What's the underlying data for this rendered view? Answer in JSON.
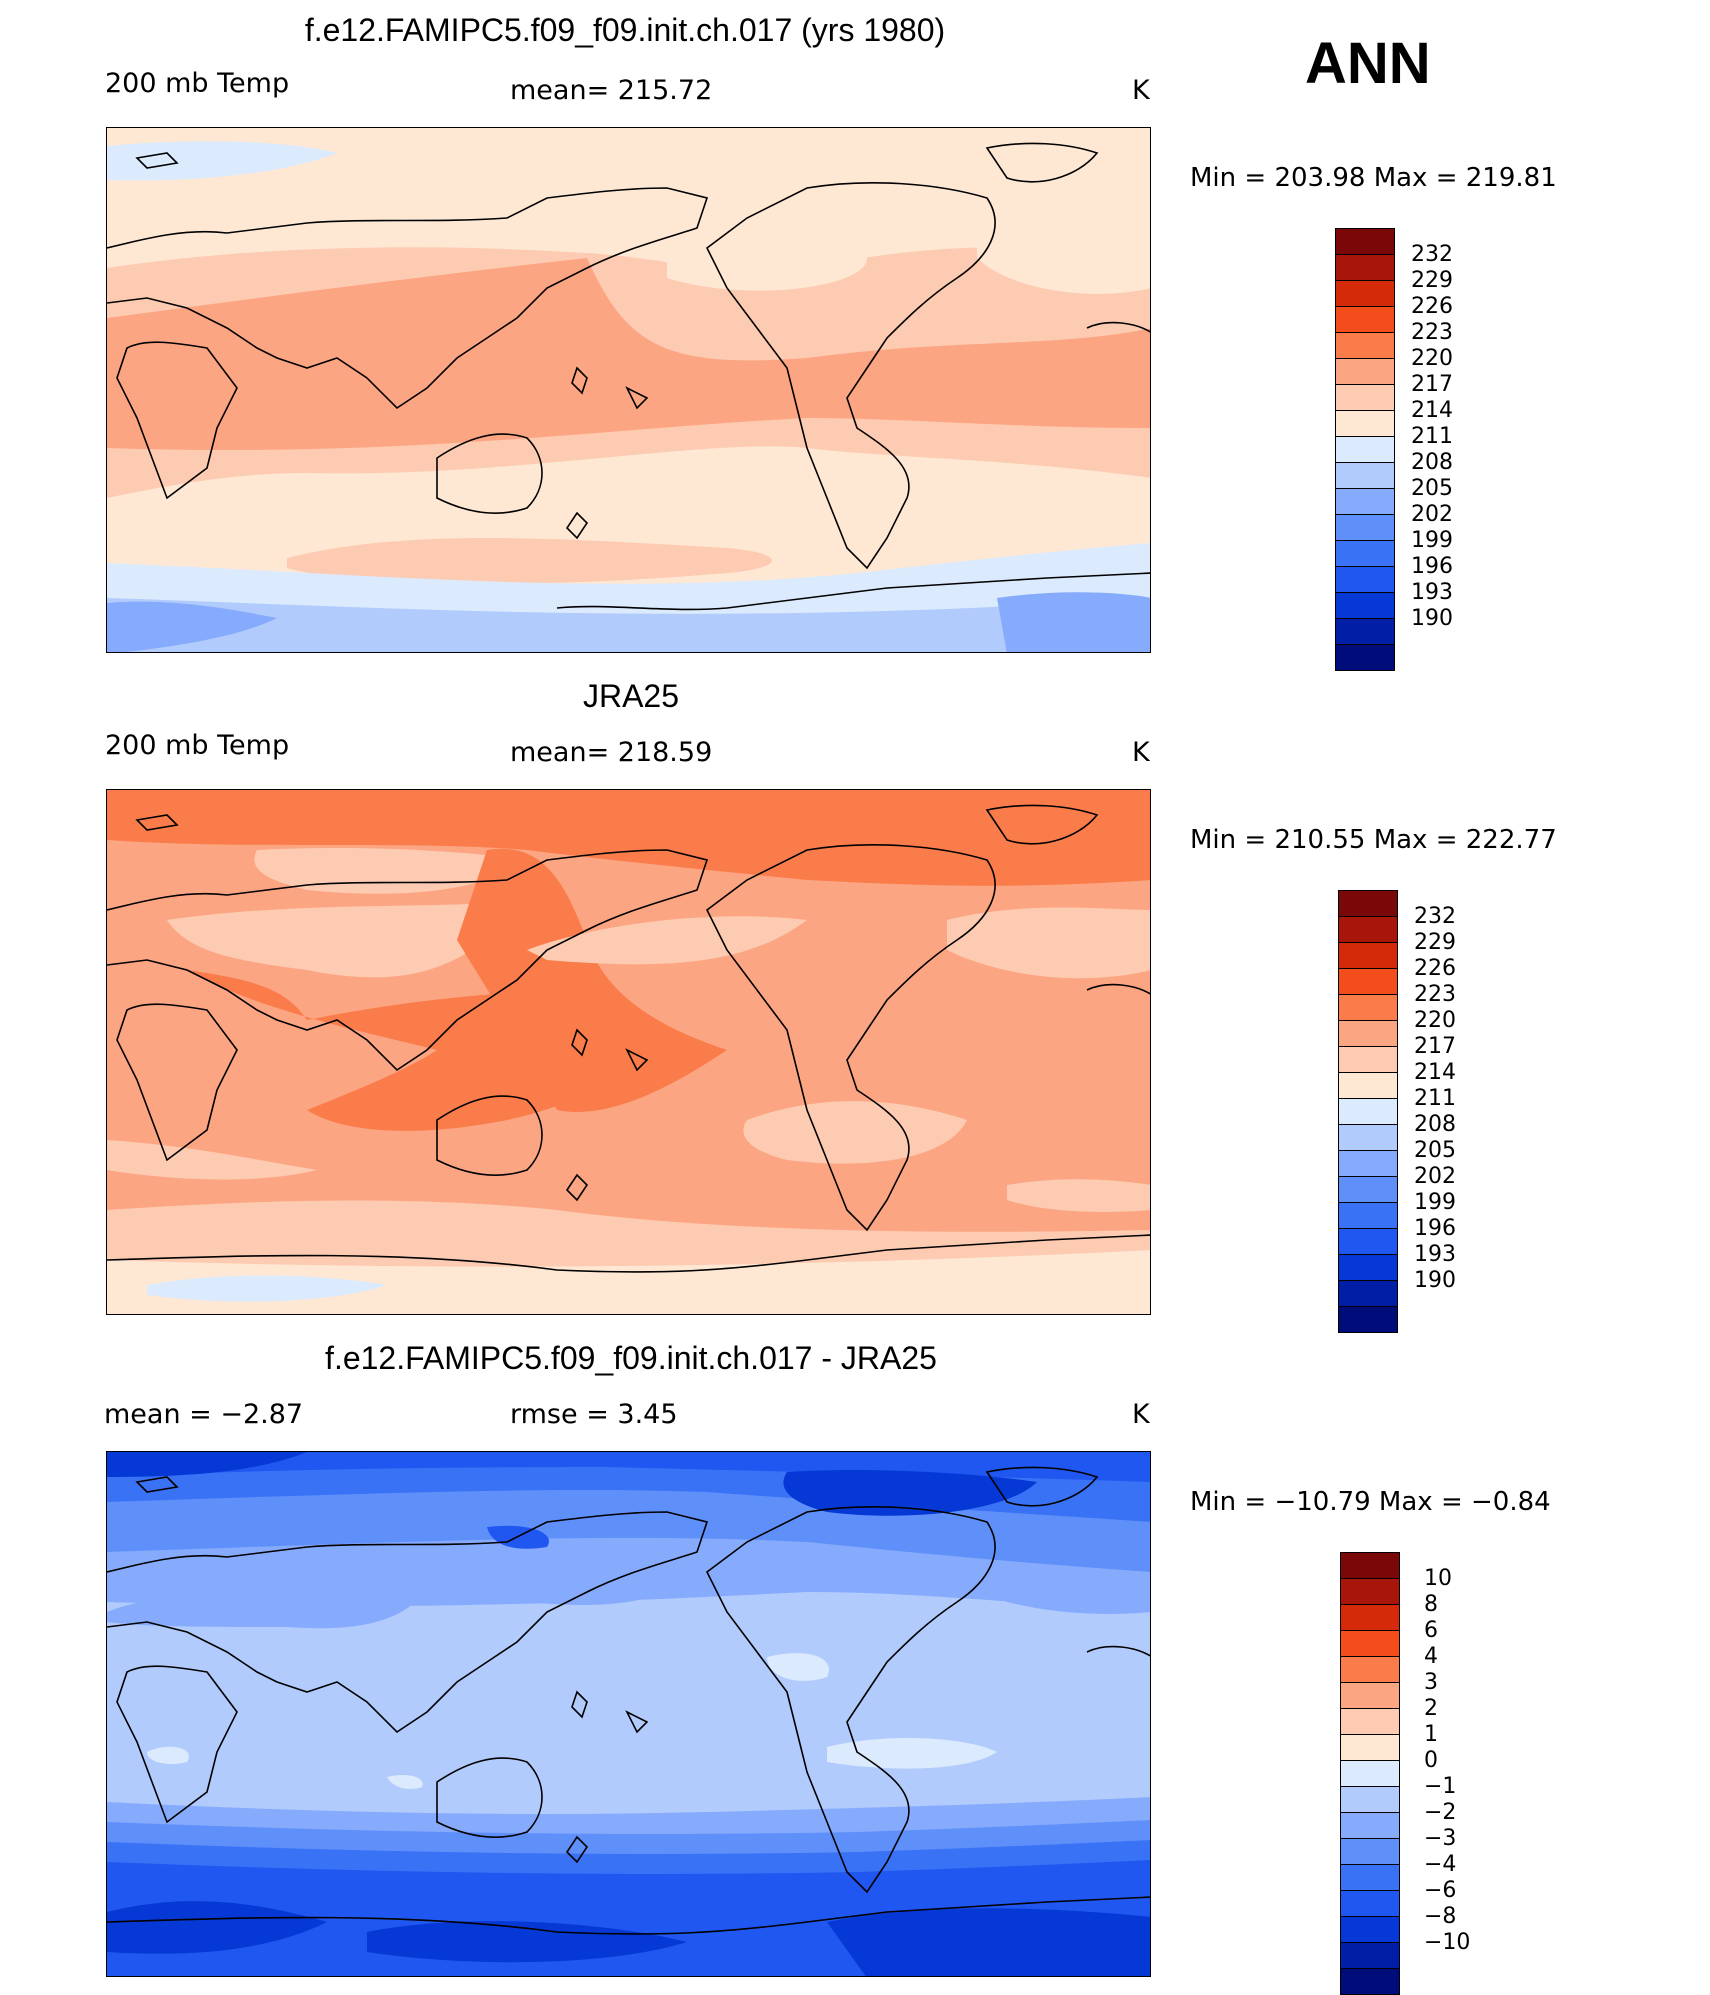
{
  "season": "ANN",
  "colors": {
    "temp_scale": [
      "#000c7a",
      "#001ea6",
      "#0638d6",
      "#1f57f0",
      "#3a72f5",
      "#5f90fa",
      "#86abfd",
      "#b2cbfd",
      "#dbeafc",
      "#fee8d4",
      "#fdcbb2",
      "#fca583",
      "#fa7c4a",
      "#f24d1a",
      "#d42a0a",
      "#a8150a",
      "#7a0808"
    ],
    "diff_scale": [
      "#000c7a",
      "#001ea6",
      "#0638d6",
      "#1f57f0",
      "#3a72f5",
      "#5f90fa",
      "#86abfd",
      "#b2cbfd",
      "#dbeafc",
      "#fee8d4",
      "#fdcbb2",
      "#fca583",
      "#fa7c4a",
      "#f24d1a",
      "#d42a0a",
      "#a8150a",
      "#7a0808"
    ]
  },
  "panels": [
    {
      "title": "f.e12.FAMIPC5.f09_f09.init.ch.017 (yrs 1980)",
      "left_label": "200 mb Temp",
      "center_label": "mean= 215.72",
      "units": "K",
      "minmax": "Min = 203.98 Max = 219.81",
      "colorbar_labels": [
        "232",
        "229",
        "226",
        "223",
        "220",
        "217",
        "214",
        "211",
        "208",
        "205",
        "202",
        "199",
        "196",
        "193",
        "190"
      ]
    },
    {
      "title": "JRA25",
      "left_label": "200 mb Temp",
      "center_label": "mean= 218.59",
      "units": "K",
      "minmax": "Min = 210.55 Max = 222.77",
      "colorbar_labels": [
        "232",
        "229",
        "226",
        "223",
        "220",
        "217",
        "214",
        "211",
        "208",
        "205",
        "202",
        "199",
        "196",
        "193",
        "190"
      ]
    },
    {
      "title": "f.e12.FAMIPC5.f09_f09.init.ch.017 - JRA25",
      "left_label": "mean =   −2.87",
      "center_label": "rmse =    3.45",
      "units": "K",
      "minmax": "Min = −10.79 Max =  −0.84",
      "colorbar_labels": [
        "10",
        "8",
        "6",
        "4",
        "3",
        "2",
        "1",
        "0",
        "−1",
        "−2",
        "−3",
        "−4",
        "−6",
        "−8",
        "−10"
      ]
    }
  ]
}
